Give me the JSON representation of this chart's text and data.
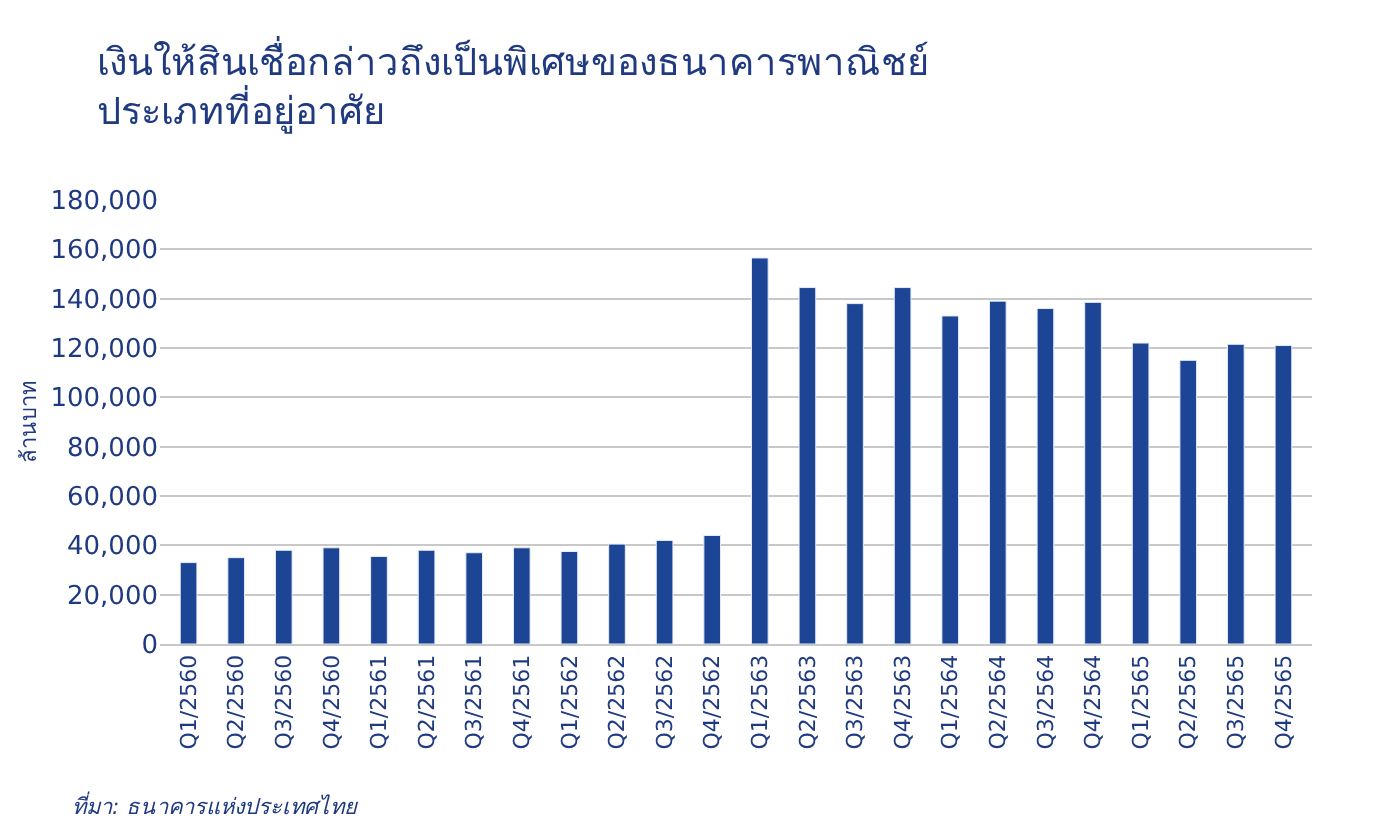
{
  "chart_data": {
    "type": "bar",
    "title": "เงินให้สินเชื่อกล่าวถึงเป็นพิเศษของธนาคารพาณิชย์\nประเภทที่อยู่อาศัย",
    "ylabel": "ล้านบาท",
    "categories": [
      "Q1/2560",
      "Q2/2560",
      "Q3/2560",
      "Q4/2560",
      "Q1/2561",
      "Q2/2561",
      "Q3/2561",
      "Q4/2561",
      "Q1/2562",
      "Q2/2562",
      "Q3/2562",
      "Q4/2562",
      "Q1/2563",
      "Q2/2563",
      "Q3/2563",
      "Q4/2563",
      "Q1/2564",
      "Q2/2564",
      "Q3/2564",
      "Q4/2564",
      "Q1/2565",
      "Q2/2565",
      "Q3/2565",
      "Q4/2565"
    ],
    "values": [
      33000,
      35000,
      38000,
      39000,
      35500,
      38000,
      37000,
      39000,
      37500,
      40500,
      42000,
      44000,
      156500,
      144500,
      138000,
      144500,
      133000,
      139000,
      136000,
      138500,
      122000,
      115000,
      121500,
      121000
    ],
    "color": "#1c4595",
    "ylim": [
      0,
      180000
    ],
    "yticks": [
      {
        "value": 0,
        "label": "0"
      },
      {
        "value": 20000,
        "label": "20,000"
      },
      {
        "value": 40000,
        "label": "40,000"
      },
      {
        "value": 60000,
        "label": "60,000"
      },
      {
        "value": 80000,
        "label": "80,000"
      },
      {
        "value": 100000,
        "label": "100,000"
      },
      {
        "value": 120000,
        "label": "120,000"
      },
      {
        "value": 140000,
        "label": "140,000"
      },
      {
        "value": 160000,
        "label": "160,000"
      },
      {
        "value": 180000,
        "label": "180,000"
      }
    ],
    "grid": "y",
    "legend": false,
    "annotations": [
      "ที่มา: ธนาคารแห่งประเทศไทย"
    ]
  }
}
